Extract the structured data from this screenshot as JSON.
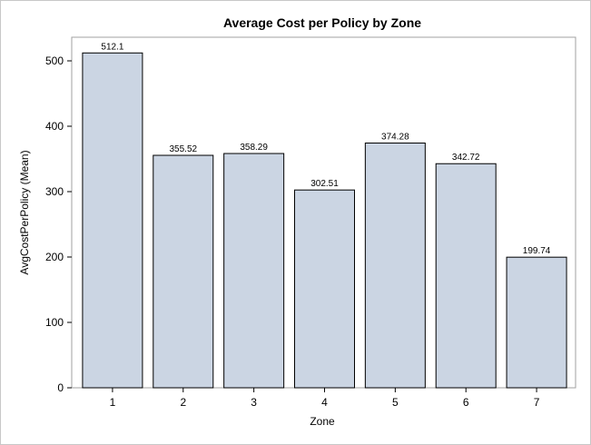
{
  "chart_data": {
    "type": "bar",
    "title": "Average Cost per Policy by Zone",
    "xlabel": "Zone",
    "ylabel": "AvgCostPerPolicy (Mean)",
    "categories": [
      "1",
      "2",
      "3",
      "4",
      "5",
      "6",
      "7"
    ],
    "values": [
      512.1,
      355.52,
      358.29,
      302.51,
      374.28,
      342.72,
      199.74
    ],
    "data_labels": [
      "512.1",
      "355.52",
      "358.29",
      "302.51",
      "374.28",
      "342.72",
      "199.74"
    ],
    "ylim": [
      0,
      540
    ],
    "yticks": [
      0,
      100,
      200,
      300,
      400,
      500
    ],
    "bar_color": "#cbd5e3",
    "bar_edge_color": "#000000",
    "grid": false,
    "legend": "none"
  }
}
